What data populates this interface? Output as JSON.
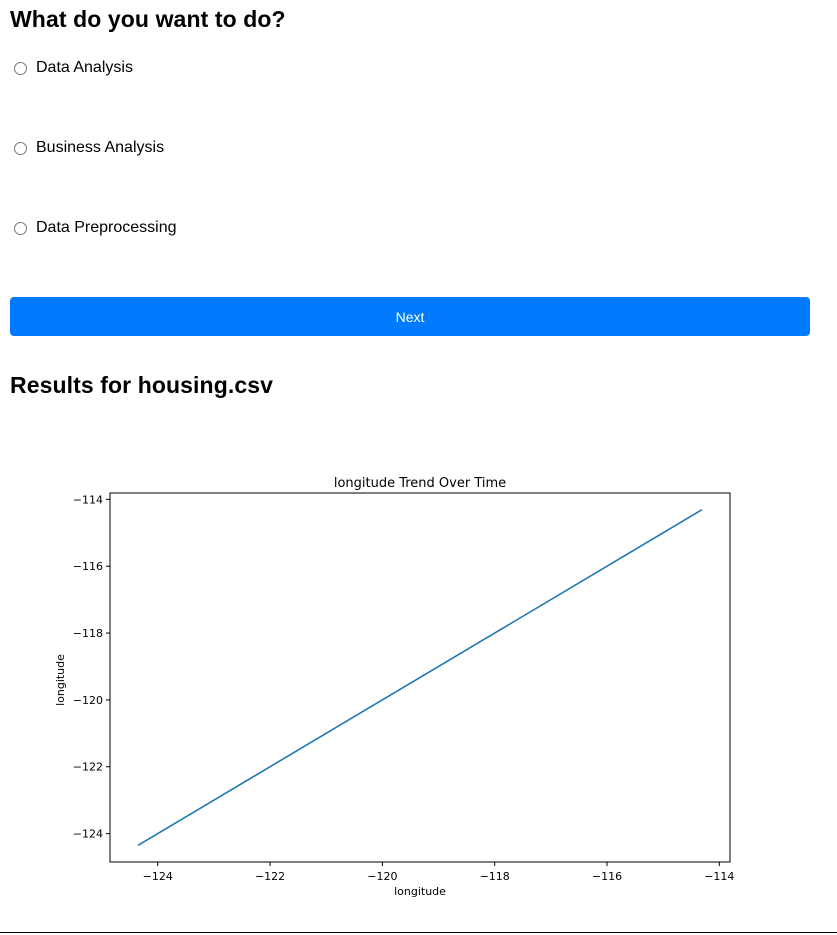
{
  "question": {
    "title": "What do you want to do?",
    "options": [
      {
        "label": "Data Analysis",
        "selected": false
      },
      {
        "label": "Business Analysis",
        "selected": false
      },
      {
        "label": "Data Preprocessing",
        "selected": false
      }
    ],
    "next_label": "Next"
  },
  "results": {
    "title": "Results for housing.csv"
  },
  "colors": {
    "accent": "#007bff",
    "line": "#1f77b4"
  },
  "chart_data": {
    "type": "line",
    "title": "longitude Trend Over Time",
    "xlabel": "longitude",
    "ylabel": "longitude",
    "x": [
      -124.35,
      -114.31
    ],
    "series": [
      {
        "values": [
          -124.35,
          -114.31
        ]
      }
    ],
    "xlim": [
      -124.85,
      -113.81
    ],
    "ylim": [
      -124.85,
      -113.81
    ],
    "xticks": [
      -124,
      -122,
      -120,
      -118,
      -116,
      -114
    ],
    "yticks": [
      -124,
      -122,
      -120,
      -118,
      -116,
      -114
    ],
    "xtick_labels": [
      "−124",
      "−122",
      "−120",
      "−118",
      "−116",
      "−114"
    ],
    "ytick_labels": [
      "−124",
      "−122",
      "−120",
      "−118",
      "−116",
      "−114"
    ],
    "grid": false,
    "legend": "none"
  }
}
